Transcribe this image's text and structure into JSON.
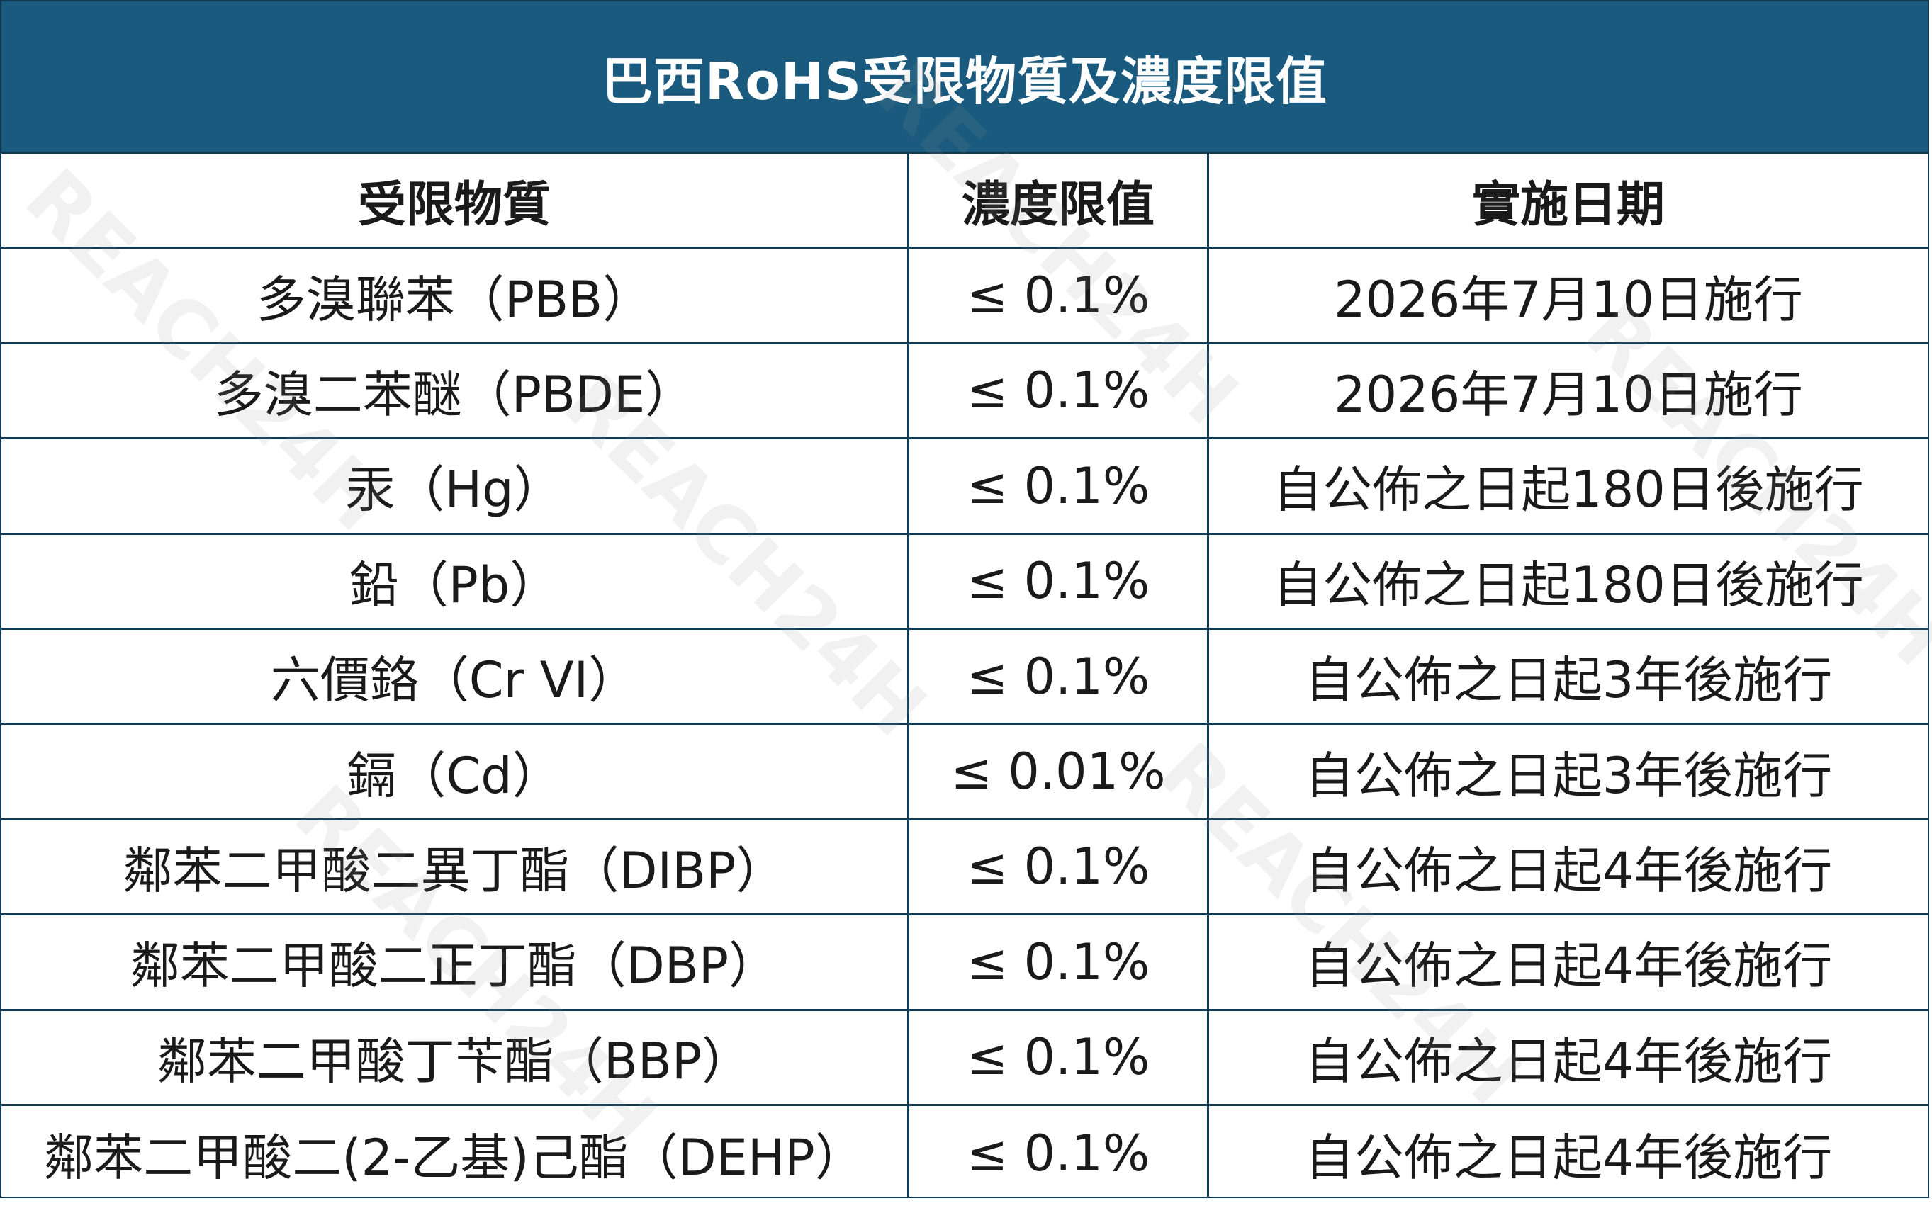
{
  "title": "巴西RoHS受限物質及濃度限值",
  "headers": [
    "受限物質",
    "濃度限值",
    "實施日期"
  ],
  "rows": [
    {
      "substance": "多溴聯苯（PBB）",
      "limit": "≤ 0.1%",
      "date": "2026年7月10日施行"
    },
    {
      "substance": "多溴二苯醚（PBDE）",
      "limit": "≤ 0.1%",
      "date": "2026年7月10日施行"
    },
    {
      "substance": "汞（Hg）",
      "limit": "≤ 0.1%",
      "date": "自公佈之日起180日後施行"
    },
    {
      "substance": "鉛（Pb）",
      "limit": "≤ 0.1%",
      "date": "自公佈之日起180日後施行"
    },
    {
      "substance": "六價鉻（Cr VI）",
      "limit": "≤ 0.1%",
      "date": "自公佈之日起3年後施行"
    },
    {
      "substance": "鎘（Cd）",
      "limit": "≤ 0.01%",
      "date": "自公佈之日起3年後施行"
    },
    {
      "substance": "鄰苯二甲酸二異丁酯（DIBP）",
      "limit": "≤ 0.1%",
      "date": "自公佈之日起4年後施行"
    },
    {
      "substance": "鄰苯二甲酸二正丁酯（DBP）",
      "limit": "≤ 0.1%",
      "date": "自公佈之日起4年後施行"
    },
    {
      "substance": "鄰苯二甲酸丁苄酯（BBP）",
      "limit": "≤ 0.1%",
      "date": "自公佈之日起4年後施行"
    },
    {
      "substance": "鄰苯二甲酸二(2-乙基)己酯（DEHP）",
      "limit": "≤ 0.1%",
      "date": "自公佈之日起4年後施行"
    }
  ],
  "watermark": "REACH24H",
  "colors": {
    "header_bg": "#1a5a7e",
    "border": "#0f3b55",
    "text": "#1a1a1a"
  }
}
